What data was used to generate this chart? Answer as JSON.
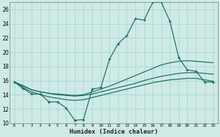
{
  "background_color": "#ceeae6",
  "grid_color": "#aad4cf",
  "line_color": "#1a6e62",
  "x_label": "Humidex (Indice chaleur)",
  "xlim": [
    -0.5,
    23.5
  ],
  "ylim": [
    10,
    27
  ],
  "yticks": [
    10,
    12,
    14,
    16,
    18,
    20,
    22,
    24,
    26
  ],
  "xticks": [
    0,
    1,
    2,
    3,
    4,
    5,
    6,
    7,
    8,
    9,
    10,
    11,
    12,
    13,
    14,
    15,
    16,
    17,
    18,
    19,
    20,
    21,
    22,
    23
  ],
  "line1_x": [
    0,
    1,
    2,
    3,
    4,
    5,
    6,
    7,
    8,
    9,
    10,
    11,
    12,
    13,
    14,
    15,
    16,
    17,
    18,
    19,
    20,
    21,
    22,
    23
  ],
  "line1_y": [
    15.8,
    14.9,
    14.1,
    14.1,
    13.0,
    13.0,
    12.1,
    10.4,
    10.5,
    14.8,
    15.0,
    19.0,
    21.2,
    22.3,
    24.7,
    24.5,
    27.0,
    27.0,
    24.3,
    19.2,
    17.5,
    17.3,
    15.8,
    15.8
  ],
  "line2_x": [
    0,
    1,
    2,
    3,
    4,
    5,
    6,
    7,
    8,
    9,
    10,
    11,
    12,
    13,
    14,
    15,
    16,
    17,
    18,
    19,
    20,
    21,
    22,
    23
  ],
  "line2_y": [
    15.8,
    15.3,
    14.7,
    14.4,
    14.2,
    14.1,
    14.0,
    13.9,
    14.0,
    14.4,
    14.8,
    15.2,
    15.7,
    16.2,
    16.7,
    17.2,
    17.7,
    18.2,
    18.5,
    18.7,
    18.8,
    18.7,
    18.6,
    18.5
  ],
  "line3_x": [
    0,
    1,
    2,
    3,
    4,
    5,
    6,
    7,
    8,
    9,
    10,
    11,
    12,
    13,
    14,
    15,
    16,
    17,
    18,
    19,
    20,
    21,
    22,
    23
  ],
  "line3_y": [
    15.8,
    15.2,
    14.7,
    14.4,
    14.2,
    14.0,
    13.9,
    13.8,
    13.9,
    14.1,
    14.4,
    14.7,
    15.0,
    15.3,
    15.6,
    16.0,
    16.3,
    16.6,
    16.8,
    17.0,
    17.1,
    17.1,
    17.0,
    16.9
  ],
  "line4_x": [
    0,
    1,
    2,
    3,
    4,
    5,
    6,
    7,
    8,
    9,
    10,
    11,
    12,
    13,
    14,
    15,
    16,
    17,
    18,
    19,
    20,
    21,
    22,
    23
  ],
  "line4_y": [
    15.8,
    15.0,
    14.4,
    14.0,
    13.7,
    13.5,
    13.3,
    13.2,
    13.3,
    13.6,
    13.9,
    14.2,
    14.5,
    14.8,
    15.1,
    15.4,
    15.7,
    15.9,
    16.1,
    16.2,
    16.3,
    16.3,
    16.1,
    15.9
  ],
  "ylabel_fontsize": 5.5,
  "xlabel_fontsize": 6.5,
  "xtick_fontsize": 4.2,
  "ytick_fontsize": 5.5
}
